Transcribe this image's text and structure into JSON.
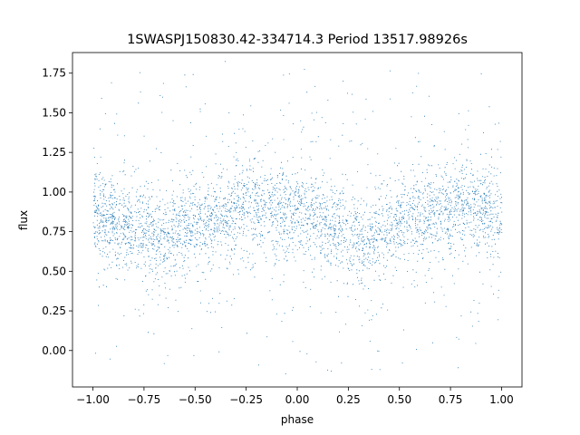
{
  "chart_data": {
    "type": "scatter",
    "title": "1SWASPJ150830.42-334714.3 Period 13517.98926s",
    "xlabel": "phase",
    "ylabel": "flux",
    "xlim": [
      -1.1,
      1.1
    ],
    "ylim": [
      -0.23,
      1.88
    ],
    "xticks": [
      -1.0,
      -0.75,
      -0.5,
      -0.25,
      0.0,
      0.25,
      0.5,
      0.75,
      1.0
    ],
    "xtick_labels": [
      "−1.00",
      "−0.75",
      "−0.50",
      "−0.25",
      "0.00",
      "0.25",
      "0.50",
      "0.75",
      "1.00"
    ],
    "yticks": [
      0.0,
      0.25,
      0.5,
      0.75,
      1.0,
      1.25,
      1.5,
      1.75
    ],
    "ytick_labels": [
      "0.00",
      "0.25",
      "0.50",
      "0.75",
      "1.00",
      "1.25",
      "1.50",
      "1.75"
    ],
    "grid": false,
    "marker_color": "#1f77b4",
    "series": [
      {
        "x_range": [
          -1.0,
          1.0
        ],
        "profile_phase": [
          -1.0,
          -0.85,
          -0.68,
          -0.5,
          -0.2,
          0.0,
          0.15,
          0.32,
          0.5,
          0.8,
          1.0
        ],
        "profile_flux": [
          0.86,
          0.8,
          0.72,
          0.8,
          0.91,
          0.87,
          0.8,
          0.72,
          0.8,
          0.91,
          0.86
        ],
        "scatter_core": 0.13,
        "outlier_range": [
          -0.15,
          1.8
        ]
      }
    ]
  }
}
